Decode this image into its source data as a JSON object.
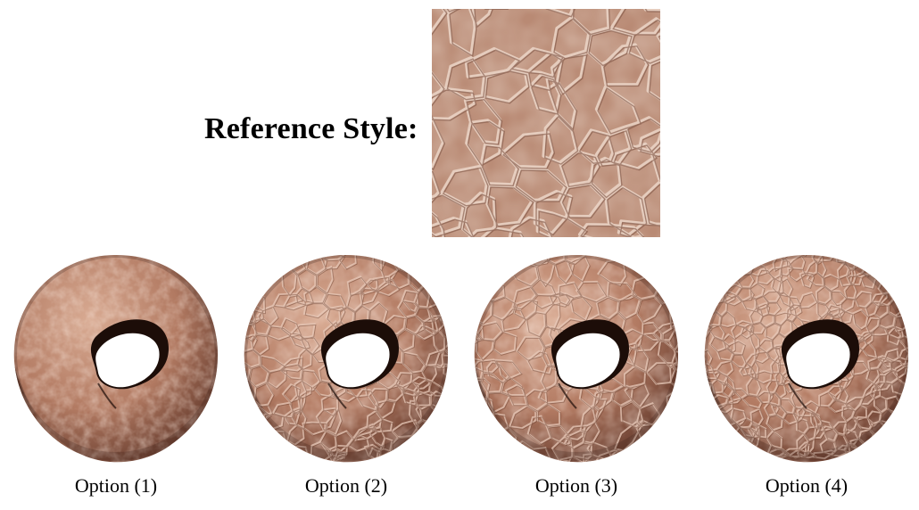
{
  "reference": {
    "label": "Reference Style:",
    "base_color": "#b88a72",
    "crack_color": "#e8cfc0"
  },
  "options": [
    {
      "label": "Option (1)",
      "pattern": "mottled"
    },
    {
      "label": "Option (2)",
      "pattern": "fine-cells"
    },
    {
      "label": "Option (3)",
      "pattern": "regular-cells"
    },
    {
      "label": "Option (4)",
      "pattern": "dense-cells"
    }
  ],
  "colors": {
    "skin": "#b9846c",
    "skin_dark": "#4a2a20",
    "hole": "#ffffff"
  }
}
